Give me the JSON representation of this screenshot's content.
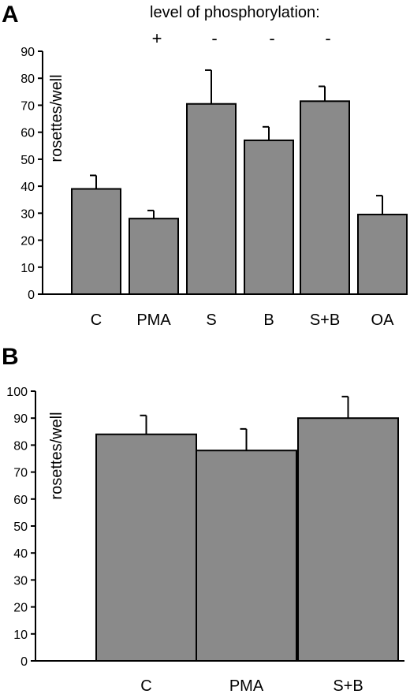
{
  "header": {
    "title": "level of phosphorylation:"
  },
  "chart_data": [
    {
      "panel": "A",
      "type": "bar",
      "ylabel": "rosettes/well",
      "xlabel": "",
      "ylim": [
        0,
        90
      ],
      "yticks": [
        0,
        10,
        20,
        30,
        40,
        50,
        60,
        70,
        80,
        90
      ],
      "categories": [
        "C",
        "PMA",
        "S",
        "B",
        "S+B",
        "OA"
      ],
      "values": [
        39,
        28,
        70.5,
        57,
        71.5,
        29.5
      ],
      "errors": [
        5,
        3,
        12.5,
        5,
        5.5,
        7
      ],
      "phosphorylation": [
        "",
        "+",
        "-",
        "-",
        "-",
        ""
      ],
      "bar_color": "#8a8a8a",
      "grid": false,
      "legend": "none"
    },
    {
      "panel": "B",
      "type": "bar",
      "ylabel": "rosettes/well",
      "xlabel": "",
      "ylim": [
        0,
        100
      ],
      "yticks": [
        0,
        10,
        20,
        30,
        40,
        50,
        60,
        70,
        80,
        90,
        100
      ],
      "categories": [
        "C",
        "PMA",
        "S+B"
      ],
      "values": [
        84,
        78,
        90
      ],
      "errors": [
        7,
        8,
        8
      ],
      "bar_color": "#8a8a8a",
      "grid": false,
      "legend": "none"
    }
  ]
}
